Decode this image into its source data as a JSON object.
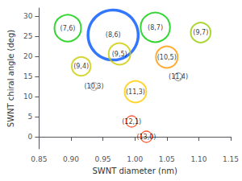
{
  "chart_data": {
    "type": "scatter",
    "xlabel": "SWNT diameter (nm)",
    "ylabel": "SWNT chiral angle (deg)",
    "xlim": [
      0.85,
      1.15
    ],
    "ylim": [
      -3,
      32
    ],
    "xticks": [
      0.85,
      {
        "value": 0.9,
        "label": "0.90"
      },
      0.95,
      {
        "value": 1,
        "label": "1.00"
      },
      1.05,
      {
        "value": 1.1,
        "label": "1.10"
      },
      1.15
    ],
    "yticks": [
      0,
      5,
      10,
      15,
      20,
      25,
      30
    ],
    "grid": false,
    "labels": [
      "(7,6)",
      "(8,6)",
      "(8,7)",
      "(9,7)",
      "(9,5)",
      "(9,4)",
      "(10,5)",
      "(10,3)",
      "(11,3)",
      "(11,4)",
      "(12,1)",
      "(13,0)"
    ],
    "x": [
      0.895,
      0.966,
      1.032,
      1.103,
      0.976,
      0.916,
      1.05,
      0.936,
      1.001,
      1.068,
      0.995,
      1.018
    ],
    "values": [
      27.0,
      25.3,
      27.2,
      25.9,
      20.6,
      17.5,
      19.8,
      12.5,
      11.2,
      14.9,
      3.8,
      0.0
    ],
    "size": [
      900,
      3200,
      1100,
      500,
      600,
      450,
      600,
      80,
      600,
      80,
      160,
      160
    ],
    "colors": [
      "#00cc00",
      "#0055ff",
      "#00cc00",
      "#99cc00",
      "#cccc00",
      "#cccc00",
      "#ff9900",
      "#aaaaaa",
      "#ffcc00",
      "#888888",
      "#ff3300",
      "#ff3300"
    ]
  }
}
